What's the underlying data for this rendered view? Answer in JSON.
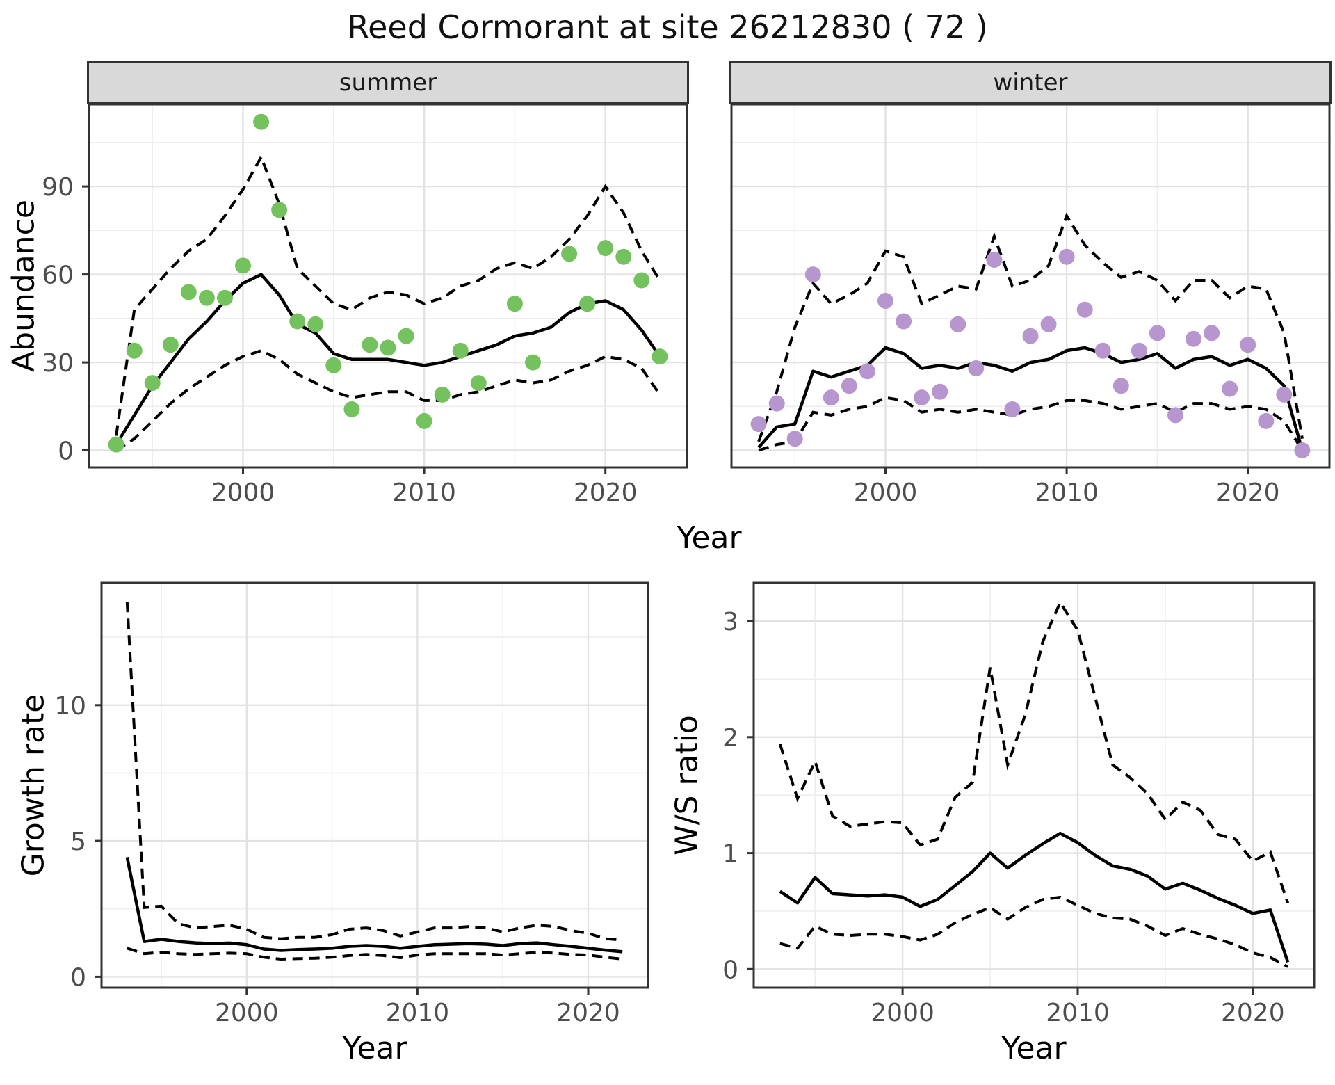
{
  "title": "Reed Cormorant at site 26212830 ( 72 )",
  "axis_titles": {
    "top_x": "Year",
    "top_y": "Abundance",
    "growth_x": "Year",
    "growth_y": "Growth rate",
    "ws_x": "Year",
    "ws_y": "W/S ratio"
  },
  "colors": {
    "summer_points": "#74c25e",
    "winter_points": "#b795ce",
    "line": "#000000",
    "grid_major": "#e2e2e2",
    "grid_minor": "#eeeeee",
    "panel_border": "#333333",
    "tick_text": "#4d4d4d",
    "strip_bg": "#d9d9d9"
  },
  "chart_data": [
    {
      "id": "panel-summer",
      "type": "line+scatter",
      "facet_label": "summer",
      "xlim": [
        1991.5,
        2024.5
      ],
      "ylim": [
        -5.8,
        118
      ],
      "x_major": [
        2000,
        2010,
        2020
      ],
      "x_minor": [
        1995,
        2005,
        2015
      ],
      "y_major": [
        0,
        30,
        60,
        90
      ],
      "y_minor": [
        15,
        45,
        75,
        105
      ],
      "x_tick_labels": [
        "2000",
        "2010",
        "2020"
      ],
      "y_tick_labels": [
        "0",
        "30",
        "60",
        "90"
      ],
      "show_y_labels": true,
      "show_x_labels": true,
      "point_color": "#74c25e",
      "years": [
        1993,
        1994,
        1995,
        1996,
        1997,
        1998,
        1999,
        2000,
        2001,
        2002,
        2003,
        2004,
        2005,
        2006,
        2007,
        2008,
        2009,
        2010,
        2011,
        2012,
        2013,
        2014,
        2015,
        2016,
        2017,
        2018,
        2019,
        2020,
        2021,
        2022,
        2023
      ],
      "mean": [
        2,
        12,
        22,
        30,
        38,
        44,
        51,
        57,
        60,
        53,
        43,
        40,
        33,
        31,
        31,
        31,
        30,
        29,
        30,
        32,
        34,
        36,
        39,
        40,
        42,
        47,
        50,
        51,
        48,
        41,
        32
      ],
      "upper": [
        5,
        48,
        55,
        62,
        68,
        72,
        80,
        89,
        100,
        84,
        62,
        56,
        50,
        48,
        52,
        54,
        53,
        50,
        52,
        56,
        58,
        62,
        64,
        62,
        66,
        72,
        80,
        90,
        81,
        68,
        58
      ],
      "lower": [
        0,
        4,
        10,
        16,
        21,
        25,
        29,
        32,
        34,
        31,
        26,
        23,
        20,
        18,
        19,
        20,
        20,
        17,
        17,
        19,
        20,
        22,
        24,
        23,
        24,
        27,
        29,
        32,
        31,
        28,
        19
      ],
      "points": [
        [
          1993,
          2
        ],
        [
          1994,
          34
        ],
        [
          1995,
          23
        ],
        [
          1996,
          36
        ],
        [
          1997,
          54
        ],
        [
          1998,
          52
        ],
        [
          1999,
          52
        ],
        [
          2000,
          63
        ],
        [
          2001,
          112
        ],
        [
          2002,
          82
        ],
        [
          2003,
          44
        ],
        [
          2004,
          43
        ],
        [
          2005,
          29
        ],
        [
          2006,
          14
        ],
        [
          2007,
          36
        ],
        [
          2008,
          35
        ],
        [
          2009,
          39
        ],
        [
          2010,
          10
        ],
        [
          2011,
          19
        ],
        [
          2012,
          34
        ],
        [
          2013,
          23
        ],
        [
          2015,
          50
        ],
        [
          2016,
          30
        ],
        [
          2018,
          67
        ],
        [
          2019,
          50
        ],
        [
          2020,
          69
        ],
        [
          2021,
          66
        ],
        [
          2022,
          58
        ],
        [
          2023,
          32
        ]
      ]
    },
    {
      "id": "panel-winter",
      "type": "line+scatter",
      "facet_label": "winter",
      "xlim": [
        1991.5,
        2024.5
      ],
      "ylim": [
        -5.8,
        118
      ],
      "x_major": [
        2000,
        2010,
        2020
      ],
      "x_minor": [
        1995,
        2005,
        2015
      ],
      "y_major": [
        0,
        30,
        60,
        90
      ],
      "y_minor": [
        15,
        45,
        75,
        105
      ],
      "x_tick_labels": [
        "2000",
        "2010",
        "2020"
      ],
      "y_tick_labels": [
        "0",
        "30",
        "60",
        "90"
      ],
      "show_y_labels": false,
      "show_x_labels": true,
      "point_color": "#b795ce",
      "years": [
        1993,
        1994,
        1995,
        1996,
        1997,
        1998,
        1999,
        2000,
        2001,
        2002,
        2003,
        2004,
        2005,
        2006,
        2007,
        2008,
        2009,
        2010,
        2011,
        2012,
        2013,
        2014,
        2015,
        2016,
        2017,
        2018,
        2019,
        2020,
        2021,
        2022,
        2023
      ],
      "mean": [
        1,
        8,
        9,
        27,
        25,
        27,
        29,
        35,
        33,
        28,
        29,
        28,
        30,
        29,
        27,
        30,
        31,
        34,
        35,
        33,
        30,
        31,
        33,
        28,
        31,
        32,
        29,
        31,
        28,
        22,
        0
      ],
      "upper": [
        3,
        20,
        42,
        57,
        50,
        53,
        57,
        68,
        66,
        50,
        53,
        56,
        55,
        73,
        56,
        58,
        63,
        80,
        70,
        64,
        59,
        61,
        58,
        51,
        58,
        58,
        52,
        56,
        55,
        40,
        4
      ],
      "lower": [
        0,
        2,
        3,
        13,
        12,
        14,
        15,
        18,
        17,
        13,
        14,
        13,
        14,
        13,
        12,
        14,
        15,
        17,
        17,
        16,
        14,
        15,
        16,
        13,
        16,
        16,
        14,
        15,
        14,
        10,
        0
      ],
      "points": [
        [
          1993,
          9
        ],
        [
          1994,
          16
        ],
        [
          1995,
          4
        ],
        [
          1996,
          60
        ],
        [
          1997,
          18
        ],
        [
          1998,
          22
        ],
        [
          1999,
          27
        ],
        [
          2000,
          51
        ],
        [
          2001,
          44
        ],
        [
          2002,
          18
        ],
        [
          2003,
          20
        ],
        [
          2004,
          43
        ],
        [
          2005,
          28
        ],
        [
          2006,
          65
        ],
        [
          2007,
          14
        ],
        [
          2008,
          39
        ],
        [
          2009,
          43
        ],
        [
          2010,
          66
        ],
        [
          2011,
          48
        ],
        [
          2012,
          34
        ],
        [
          2013,
          22
        ],
        [
          2014,
          34
        ],
        [
          2015,
          40
        ],
        [
          2016,
          12
        ],
        [
          2017,
          38
        ],
        [
          2018,
          40
        ],
        [
          2019,
          21
        ],
        [
          2020,
          36
        ],
        [
          2021,
          10
        ],
        [
          2022,
          19
        ],
        [
          2023,
          0
        ]
      ]
    },
    {
      "id": "panel-growth",
      "type": "line",
      "facet_label": "",
      "xlim": [
        1991.5,
        2023.5
      ],
      "ylim": [
        -0.4,
        14.5
      ],
      "x_major": [
        2000,
        2010,
        2020
      ],
      "x_minor": [
        1995,
        2005,
        2015
      ],
      "y_major": [
        0,
        5,
        10
      ],
      "y_minor": [
        2.5,
        7.5,
        12.5
      ],
      "x_tick_labels": [
        "2000",
        "2010",
        "2020"
      ],
      "y_tick_labels": [
        "0",
        "5",
        "10"
      ],
      "show_y_labels": true,
      "show_x_labels": true,
      "point_color": null,
      "years": [
        1993,
        1994,
        1995,
        1996,
        1997,
        1998,
        1999,
        2000,
        2001,
        2002,
        2003,
        2004,
        2005,
        2006,
        2007,
        2008,
        2009,
        2010,
        2011,
        2012,
        2013,
        2014,
        2015,
        2016,
        2017,
        2018,
        2019,
        2020,
        2021,
        2022
      ],
      "mean": [
        4.4,
        1.3,
        1.38,
        1.3,
        1.25,
        1.22,
        1.24,
        1.18,
        1.02,
        0.97,
        1.0,
        1.02,
        1.05,
        1.12,
        1.15,
        1.12,
        1.05,
        1.12,
        1.18,
        1.2,
        1.22,
        1.2,
        1.15,
        1.22,
        1.25,
        1.18,
        1.12,
        1.05,
        0.98,
        0.92
      ],
      "upper": [
        13.8,
        2.55,
        2.6,
        1.95,
        1.8,
        1.85,
        1.9,
        1.75,
        1.45,
        1.4,
        1.45,
        1.45,
        1.55,
        1.75,
        1.8,
        1.7,
        1.5,
        1.65,
        1.8,
        1.8,
        1.85,
        1.8,
        1.65,
        1.8,
        1.9,
        1.85,
        1.7,
        1.6,
        1.4,
        1.35
      ],
      "lower": [
        1.05,
        0.85,
        0.9,
        0.85,
        0.82,
        0.85,
        0.87,
        0.85,
        0.72,
        0.65,
        0.67,
        0.68,
        0.72,
        0.78,
        0.82,
        0.78,
        0.7,
        0.8,
        0.85,
        0.85,
        0.85,
        0.85,
        0.8,
        0.85,
        0.9,
        0.87,
        0.82,
        0.8,
        0.72,
        0.65
      ],
      "points": []
    },
    {
      "id": "panel-ws",
      "type": "line",
      "facet_label": "",
      "xlim": [
        1991.5,
        2023.5
      ],
      "ylim": [
        -0.16,
        3.33
      ],
      "x_major": [
        2000,
        2010,
        2020
      ],
      "x_minor": [
        1995,
        2005,
        2015
      ],
      "y_major": [
        0,
        1,
        2,
        3
      ],
      "y_minor": [
        0.5,
        1.5,
        2.5
      ],
      "x_tick_labels": [
        "2000",
        "2010",
        "2020"
      ],
      "y_tick_labels": [
        "0",
        "1",
        "2",
        "3"
      ],
      "show_y_labels": true,
      "show_x_labels": true,
      "point_color": null,
      "years": [
        1993,
        1994,
        1995,
        1996,
        1997,
        1998,
        1999,
        2000,
        2001,
        2002,
        2003,
        2004,
        2005,
        2006,
        2007,
        2008,
        2009,
        2010,
        2011,
        2012,
        2013,
        2014,
        2015,
        2016,
        2017,
        2018,
        2019,
        2020,
        2021,
        2022
      ],
      "mean": [
        0.67,
        0.57,
        0.79,
        0.65,
        0.64,
        0.63,
        0.64,
        0.62,
        0.54,
        0.6,
        0.72,
        0.84,
        1.0,
        0.87,
        0.98,
        1.08,
        1.17,
        1.09,
        0.98,
        0.89,
        0.86,
        0.8,
        0.69,
        0.74,
        0.68,
        0.61,
        0.55,
        0.48,
        0.51,
        0.06
      ],
      "upper": [
        1.94,
        1.47,
        1.79,
        1.32,
        1.23,
        1.25,
        1.27,
        1.26,
        1.07,
        1.12,
        1.48,
        1.61,
        2.6,
        1.76,
        2.19,
        2.82,
        3.16,
        2.92,
        2.34,
        1.76,
        1.65,
        1.51,
        1.29,
        1.44,
        1.37,
        1.16,
        1.12,
        0.93,
        1.01,
        0.57
      ],
      "lower": [
        0.22,
        0.18,
        0.37,
        0.3,
        0.29,
        0.3,
        0.3,
        0.28,
        0.25,
        0.3,
        0.4,
        0.47,
        0.53,
        0.43,
        0.53,
        0.6,
        0.62,
        0.55,
        0.48,
        0.44,
        0.43,
        0.37,
        0.29,
        0.35,
        0.3,
        0.26,
        0.21,
        0.14,
        0.1,
        0.02
      ],
      "points": []
    }
  ]
}
